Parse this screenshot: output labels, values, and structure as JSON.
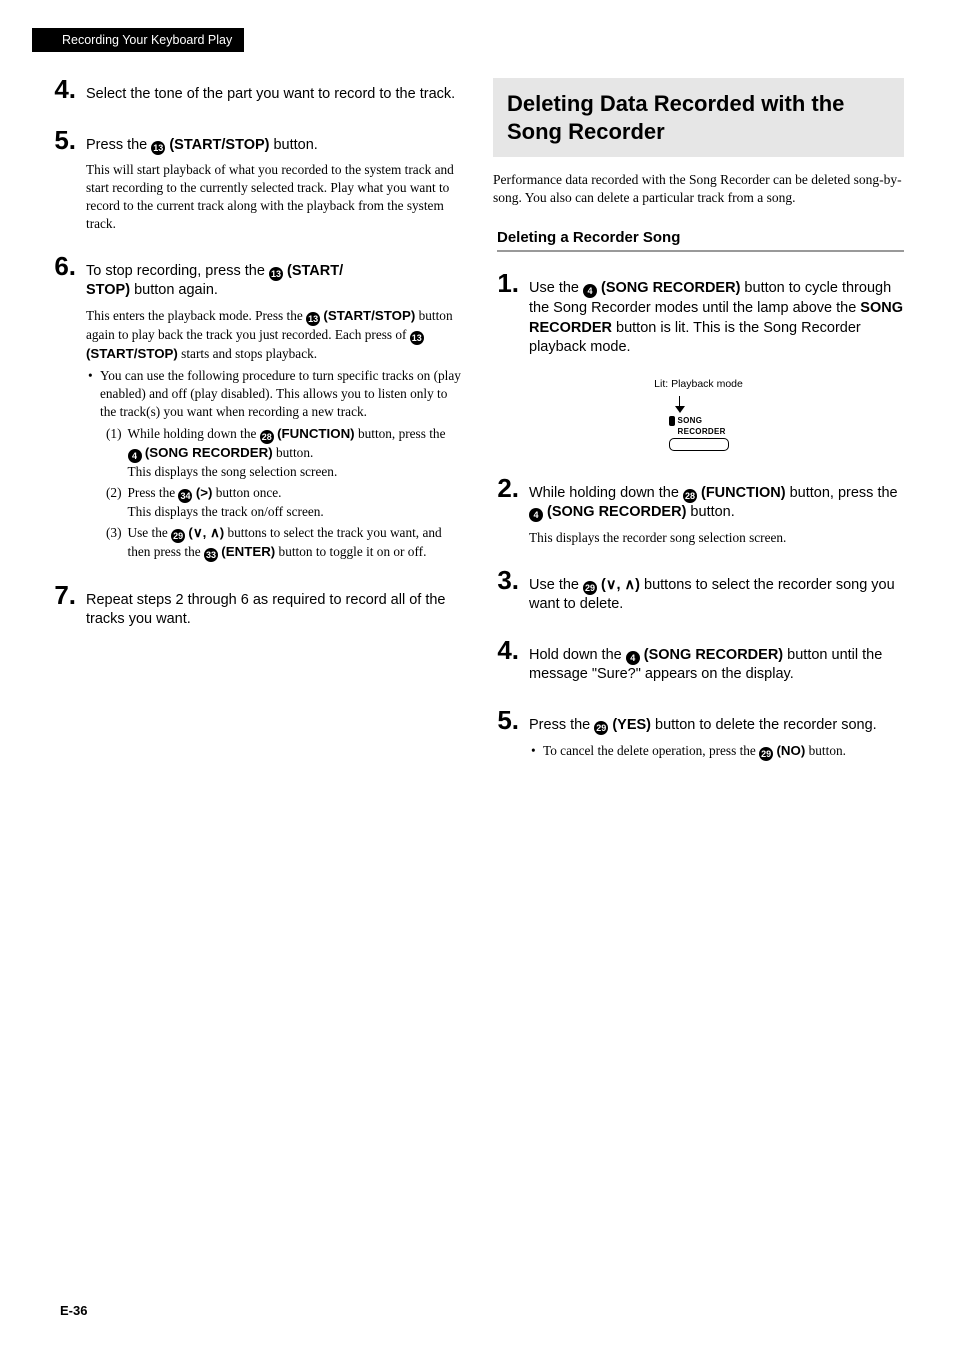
{
  "header": {
    "chapter": "Recording Your Keyboard Play"
  },
  "pageNumber": "E-36",
  "icons": {
    "n4": "4",
    "n13": "13",
    "n28": "28",
    "n29": "29",
    "n33": "33",
    "n34": "34"
  },
  "labels": {
    "start_stop": "(START/STOP)",
    "start_stop_split": "(START/STOP)",
    "start_stop_a": "(START/",
    "start_stop_b": "STOP)",
    "function": "(FUNCTION)",
    "song_recorder": "(SONG RECORDER)",
    "song_recorder_bold": "SONG RECORDER",
    "enter": "(ENTER)",
    "yes": "(YES)",
    "no": "(NO)",
    "right": "(>)",
    "updown": "(∨, ∧)"
  },
  "left": {
    "s4": {
      "num": "4.",
      "main": "Select the tone of the part you want to record to the track."
    },
    "s5": {
      "num": "5.",
      "main_a": "Press the ",
      "main_b": " button.",
      "detail": "This will start playback of what you recorded to the system track and start recording to the currently selected track. Play what you want to record to the current track along with the playback from the system track."
    },
    "s6": {
      "num": "6.",
      "main_a": "To stop recording, press the ",
      "main_c": " button again.",
      "detail_a": "This enters the playback mode. Press the ",
      "detail_b": " button again to play back the track you just recorded. Each press of ",
      "detail_c": " starts and stops playback.",
      "bullet": "You can use the following procedure to turn specific tracks on (play enabled) and off (play disabled). This allows you to listen only to the track(s) you want when recording a new track.",
      "sub1_n": "(1)",
      "sub1_a": "While holding down the ",
      "sub1_b": " button, press the ",
      "sub1_c": " button.",
      "sub1_note": "This displays the song selection screen.",
      "sub2_n": "(2)",
      "sub2_a": "Press the ",
      "sub2_b": " button once.",
      "sub2_note": "This displays the track on/off screen.",
      "sub3_n": "(3)",
      "sub3_a": "Use the ",
      "sub3_b": " buttons to select the track you want, and then press the ",
      "sub3_c": " button to toggle it on or off."
    },
    "s7": {
      "num": "7.",
      "main": "Repeat steps 2 through 6 as required to record all of the tracks you want."
    }
  },
  "right": {
    "title": "Deleting Data Recorded with the Song Recorder",
    "intro": "Performance data recorded with the Song Recorder can be deleted song-by-song. You also can delete a particular track from a song.",
    "subheading": "Deleting a Recorder Song",
    "s1": {
      "num": "1.",
      "main_a": "Use the ",
      "main_b": " button to cycle through the Song Recorder modes until the lamp above the ",
      "main_c": " button is lit. This is the Song Recorder playback mode."
    },
    "fig": {
      "caption": "Lit: Playback mode",
      "line1": "SONG",
      "line2": "RECORDER"
    },
    "s2": {
      "num": "2.",
      "main_a": "While holding down the ",
      "main_b": " button, press the ",
      "main_c": " button.",
      "detail": "This displays the recorder song selection screen."
    },
    "s3": {
      "num": "3.",
      "main_a": "Use the ",
      "main_b": " buttons to select the recorder song you want to delete."
    },
    "s4": {
      "num": "4.",
      "main_a": "Hold down the ",
      "main_b": " button until the message \"Sure?\" appears on the display."
    },
    "s5": {
      "num": "5.",
      "main_a": "Press the ",
      "main_b": " button to delete the recorder song.",
      "bullet_a": "To cancel the delete operation, press the ",
      "bullet_b": " button."
    }
  }
}
